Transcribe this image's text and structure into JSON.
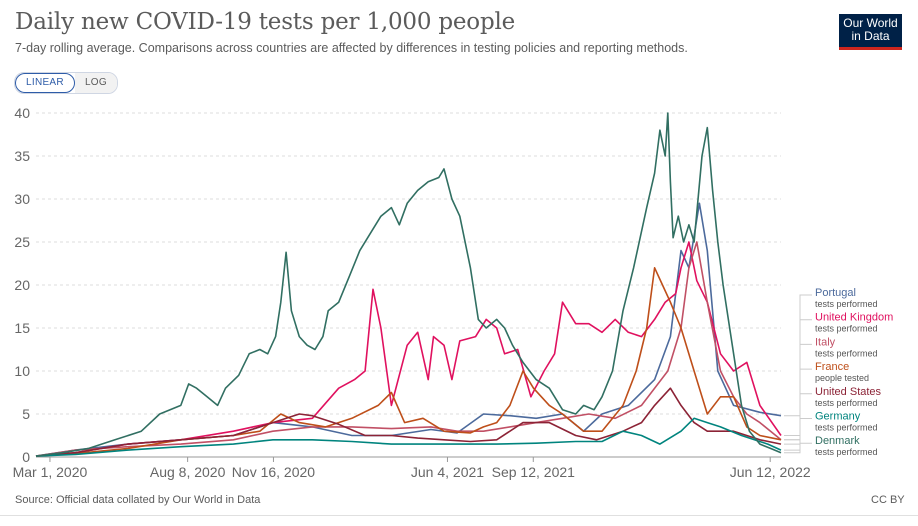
{
  "header": {
    "title": "Daily new COVID-19 tests per 1,000 people",
    "subtitle": "7-day rolling average. Comparisons across countries are affected by differences in testing policies and reporting methods.",
    "logo_line1": "Our World",
    "logo_line2": "in Data"
  },
  "controls": {
    "linear_label": "LINEAR",
    "log_label": "LOG",
    "selected": "linear"
  },
  "footer": {
    "source": "Source: Official data collated by Our World in Data",
    "license": "CC BY"
  },
  "colors": {
    "grid": "#dddddd",
    "axis": "#666666",
    "text": "#666666"
  },
  "chart_data": {
    "type": "line",
    "title": "Daily new COVID-19 tests per 1,000 people",
    "xlabel": "",
    "ylabel": "",
    "ylim": [
      0,
      40
    ],
    "yticks": [
      0,
      5,
      10,
      15,
      20,
      25,
      30,
      35,
      40
    ],
    "xrange": [
      "Feb 16, 2020",
      "Jun 26, 2022"
    ],
    "xticks": [
      {
        "label": "Mar 1, 2020",
        "month": 2.03
      },
      {
        "label": "Aug 8, 2020",
        "month": 7.26
      },
      {
        "label": "Nov 16, 2020",
        "month": 10.52
      },
      {
        "label": "Jun 4, 2021",
        "month": 17.13
      },
      {
        "label": "Sep 12, 2021",
        "month": 20.39
      },
      {
        "label": "Jun 12, 2022",
        "month": 29.39
      }
    ],
    "series": [
      {
        "name": "Portugal",
        "unit": "tests performed",
        "color": "#4c6a9c",
        "points": [
          [
            1.5,
            0.1
          ],
          [
            3,
            0.8
          ],
          [
            5,
            1.5
          ],
          [
            7,
            2
          ],
          [
            9,
            2.5
          ],
          [
            10.5,
            4
          ],
          [
            12,
            3.5
          ],
          [
            13.5,
            2.5
          ],
          [
            15,
            2.5
          ],
          [
            16.5,
            3.2
          ],
          [
            17.5,
            2.8
          ],
          [
            18.5,
            5
          ],
          [
            19.5,
            4.8
          ],
          [
            20.5,
            4.5
          ],
          [
            21.5,
            5
          ],
          [
            22.3,
            3
          ],
          [
            23,
            5
          ],
          [
            24,
            6
          ],
          [
            25,
            9
          ],
          [
            25.6,
            14
          ],
          [
            26,
            24
          ],
          [
            26.3,
            22
          ],
          [
            26.7,
            29.5
          ],
          [
            27,
            24
          ],
          [
            27.4,
            10
          ],
          [
            28,
            6
          ],
          [
            29,
            5.2
          ],
          [
            29.8,
            4.8
          ]
        ]
      },
      {
        "name": "United Kingdom",
        "unit": "tests performed",
        "color": "#e0115f",
        "points": [
          [
            1.5,
            0.1
          ],
          [
            3,
            0.5
          ],
          [
            5,
            1.5
          ],
          [
            7,
            2
          ],
          [
            9,
            3
          ],
          [
            10.5,
            4
          ],
          [
            12,
            4.5
          ],
          [
            13,
            8
          ],
          [
            13.6,
            9
          ],
          [
            14,
            10
          ],
          [
            14.3,
            19.5
          ],
          [
            14.6,
            15
          ],
          [
            15,
            6
          ],
          [
            15.6,
            13
          ],
          [
            16,
            14.5
          ],
          [
            16.4,
            9
          ],
          [
            16.6,
            14
          ],
          [
            17,
            13
          ],
          [
            17.3,
            9
          ],
          [
            17.6,
            13.5
          ],
          [
            18.2,
            14
          ],
          [
            18.6,
            16
          ],
          [
            19,
            15
          ],
          [
            19.3,
            12
          ],
          [
            19.8,
            12.5
          ],
          [
            20.3,
            7
          ],
          [
            20.8,
            10
          ],
          [
            21.2,
            12
          ],
          [
            21.5,
            18
          ],
          [
            22,
            15.5
          ],
          [
            22.5,
            15.5
          ],
          [
            23,
            14.5
          ],
          [
            23.5,
            16
          ],
          [
            24,
            14.5
          ],
          [
            24.5,
            14
          ],
          [
            25,
            16
          ],
          [
            25.4,
            18
          ],
          [
            25.8,
            19
          ],
          [
            26,
            22
          ],
          [
            26.3,
            25
          ],
          [
            26.6,
            20.5
          ],
          [
            27,
            18
          ],
          [
            27.5,
            12
          ],
          [
            28,
            10
          ],
          [
            28.5,
            11
          ],
          [
            29,
            6
          ],
          [
            29.8,
            2.5
          ]
        ]
      },
      {
        "name": "Italy",
        "unit": "tests performed",
        "color": "#c15065",
        "points": [
          [
            1.5,
            0.1
          ],
          [
            3,
            0.8
          ],
          [
            5,
            1.2
          ],
          [
            7,
            1.5
          ],
          [
            9,
            2
          ],
          [
            10.5,
            3
          ],
          [
            12,
            3.5
          ],
          [
            13.5,
            3.5
          ],
          [
            15,
            3.3
          ],
          [
            16.5,
            3.5
          ],
          [
            17.5,
            3
          ],
          [
            18.5,
            3
          ],
          [
            19.5,
            3.5
          ],
          [
            20.5,
            4
          ],
          [
            21.5,
            4.5
          ],
          [
            22.5,
            5
          ],
          [
            23.5,
            4.5
          ],
          [
            24.5,
            6
          ],
          [
            25.5,
            10
          ],
          [
            26,
            15
          ],
          [
            26.3,
            22
          ],
          [
            26.6,
            25
          ],
          [
            27,
            18
          ],
          [
            27.5,
            10
          ],
          [
            28,
            7
          ],
          [
            28.5,
            5
          ],
          [
            29,
            4
          ],
          [
            29.8,
            2
          ]
        ]
      },
      {
        "name": "France",
        "unit": "people tested",
        "color": "#be4f1a",
        "points": [
          [
            1.5,
            0.1
          ],
          [
            3,
            0.4
          ],
          [
            5,
            1
          ],
          [
            7,
            2
          ],
          [
            9,
            2.5
          ],
          [
            10,
            3
          ],
          [
            10.8,
            5
          ],
          [
            11.5,
            4
          ],
          [
            12.5,
            3.5
          ],
          [
            13.5,
            4.5
          ],
          [
            14.5,
            6
          ],
          [
            15,
            7.5
          ],
          [
            15.5,
            4
          ],
          [
            16.2,
            4.5
          ],
          [
            17,
            3
          ],
          [
            18,
            2.8
          ],
          [
            18.5,
            3.5
          ],
          [
            19,
            4
          ],
          [
            19.5,
            6
          ],
          [
            20,
            10
          ],
          [
            20.4,
            8
          ],
          [
            21,
            6
          ],
          [
            21.5,
            5
          ],
          [
            22.3,
            3
          ],
          [
            23,
            3
          ],
          [
            23.8,
            6
          ],
          [
            24.3,
            10
          ],
          [
            24.7,
            15
          ],
          [
            25,
            22
          ],
          [
            25.3,
            20
          ],
          [
            25.6,
            18
          ],
          [
            26,
            15
          ],
          [
            26.5,
            10
          ],
          [
            27,
            5
          ],
          [
            27.5,
            7
          ],
          [
            28,
            7
          ],
          [
            28.5,
            3.5
          ],
          [
            29,
            2.5
          ],
          [
            29.8,
            2
          ]
        ]
      },
      {
        "name": "United States",
        "unit": "tests performed",
        "color": "#8c2336",
        "points": [
          [
            1.5,
            0.1
          ],
          [
            3,
            0.5
          ],
          [
            5,
            1.5
          ],
          [
            7,
            2
          ],
          [
            9,
            2.5
          ],
          [
            10.5,
            4
          ],
          [
            11.5,
            5
          ],
          [
            12,
            4.8
          ],
          [
            13,
            3.8
          ],
          [
            14,
            2.5
          ],
          [
            15,
            2.5
          ],
          [
            16,
            2.2
          ],
          [
            17,
            2
          ],
          [
            18,
            1.8
          ],
          [
            19,
            2
          ],
          [
            20,
            4
          ],
          [
            21,
            4
          ],
          [
            22,
            2.5
          ],
          [
            22.8,
            2
          ],
          [
            23.8,
            3
          ],
          [
            24.5,
            4
          ],
          [
            25,
            6
          ],
          [
            25.6,
            8
          ],
          [
            26,
            6
          ],
          [
            26.5,
            4
          ],
          [
            27,
            3
          ],
          [
            28,
            3
          ],
          [
            29,
            2
          ],
          [
            29.8,
            1.5
          ]
        ]
      },
      {
        "name": "Germany",
        "unit": "tests performed",
        "color": "#00847e",
        "points": [
          [
            1.5,
            0.1
          ],
          [
            3,
            0.3
          ],
          [
            5,
            0.8
          ],
          [
            7,
            1.2
          ],
          [
            9,
            1.5
          ],
          [
            10.5,
            2
          ],
          [
            12,
            2
          ],
          [
            13.5,
            1.8
          ],
          [
            15,
            1.5
          ],
          [
            17,
            1.5
          ],
          [
            19,
            1.5
          ],
          [
            20.5,
            1.6
          ],
          [
            22,
            1.8
          ],
          [
            23,
            1.8
          ],
          [
            23.8,
            3
          ],
          [
            24.5,
            2.5
          ],
          [
            25.2,
            1.5
          ],
          [
            26,
            3
          ],
          [
            26.5,
            4.5
          ],
          [
            27,
            4
          ],
          [
            27.5,
            3.5
          ],
          [
            28.3,
            2.5
          ],
          [
            29.3,
            1.5
          ],
          [
            29.8,
            0.8
          ]
        ]
      },
      {
        "name": "Denmark",
        "unit": "tests performed",
        "color": "#316f62",
        "points": [
          [
            1.5,
            0.1
          ],
          [
            2.5,
            0.5
          ],
          [
            3.5,
            1
          ],
          [
            4.5,
            2
          ],
          [
            5.5,
            3
          ],
          [
            6.2,
            5
          ],
          [
            7,
            6
          ],
          [
            7.3,
            8.5
          ],
          [
            7.6,
            8
          ],
          [
            8,
            7
          ],
          [
            8.4,
            6
          ],
          [
            8.7,
            8
          ],
          [
            9.2,
            9.5
          ],
          [
            9.6,
            12
          ],
          [
            10,
            12.5
          ],
          [
            10.3,
            12
          ],
          [
            10.6,
            14
          ],
          [
            10.8,
            18
          ],
          [
            11,
            23.8
          ],
          [
            11.2,
            17
          ],
          [
            11.5,
            14
          ],
          [
            11.8,
            13
          ],
          [
            12.1,
            12.5
          ],
          [
            12.4,
            14
          ],
          [
            12.6,
            17
          ],
          [
            13,
            18
          ],
          [
            13.4,
            21
          ],
          [
            13.8,
            24
          ],
          [
            14.2,
            26
          ],
          [
            14.6,
            28
          ],
          [
            15,
            29
          ],
          [
            15.3,
            27
          ],
          [
            15.6,
            29.5
          ],
          [
            16,
            31
          ],
          [
            16.4,
            32
          ],
          [
            16.8,
            32.5
          ],
          [
            17,
            33.5
          ],
          [
            17.3,
            30
          ],
          [
            17.6,
            28
          ],
          [
            18,
            22
          ],
          [
            18.3,
            16
          ],
          [
            18.6,
            15
          ],
          [
            19,
            16
          ],
          [
            19.3,
            15
          ],
          [
            19.6,
            13
          ],
          [
            20,
            11
          ],
          [
            20.5,
            9
          ],
          [
            21,
            8
          ],
          [
            21.5,
            5.5
          ],
          [
            22,
            5
          ],
          [
            22.3,
            6
          ],
          [
            22.7,
            5.5
          ],
          [
            23,
            7
          ],
          [
            23.4,
            10
          ],
          [
            23.8,
            17
          ],
          [
            24.2,
            22
          ],
          [
            24.7,
            29
          ],
          [
            25,
            33
          ],
          [
            25.2,
            38
          ],
          [
            25.4,
            35
          ],
          [
            25.5,
            40
          ],
          [
            25.6,
            32
          ],
          [
            25.7,
            25.5
          ],
          [
            25.9,
            28
          ],
          [
            26.1,
            25
          ],
          [
            26.3,
            27
          ],
          [
            26.5,
            25
          ],
          [
            26.8,
            35
          ],
          [
            27,
            38.3
          ],
          [
            27.2,
            31
          ],
          [
            27.4,
            25
          ],
          [
            27.6,
            20
          ],
          [
            28,
            12
          ],
          [
            28.3,
            6
          ],
          [
            28.6,
            3
          ],
          [
            29,
            1.5
          ],
          [
            29.4,
            1
          ],
          [
            29.8,
            0.5
          ]
        ]
      }
    ]
  }
}
